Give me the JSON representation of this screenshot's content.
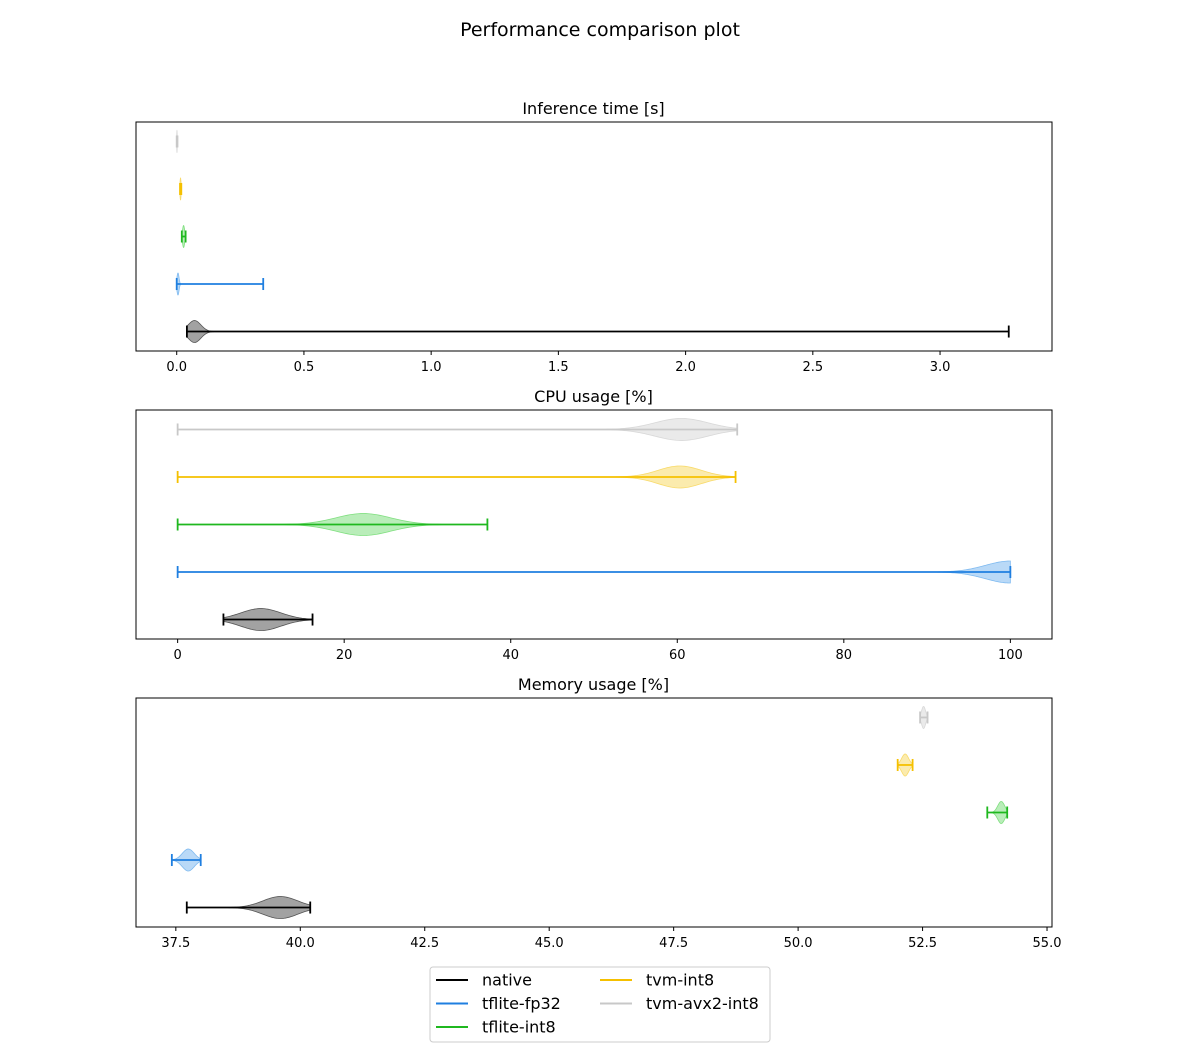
{
  "figure": {
    "title": "Performance comparison plot"
  },
  "chart_data": [
    {
      "type": "violin",
      "orientation": "horizontal",
      "title": "Inference time [s]",
      "xlim": [
        -0.16,
        3.44
      ],
      "xticks": [
        0.0,
        0.5,
        1.0,
        1.5,
        2.0,
        2.5,
        3.0
      ],
      "tick_labels": [
        "0.0",
        "0.5",
        "1.0",
        "1.5",
        "2.0",
        "2.5",
        "3.0"
      ],
      "grid": false,
      "series": [
        {
          "name": "native",
          "min": 0.04,
          "max": 3.27,
          "mode": 0.07,
          "spread": 0.025
        },
        {
          "name": "tflite-fp32",
          "min": 0.0,
          "max": 0.34,
          "mode": 0.005,
          "spread": 0.004
        },
        {
          "name": "tflite-int8",
          "min": 0.02,
          "max": 0.035,
          "mode": 0.027,
          "spread": 0.004
        },
        {
          "name": "tvm-int8",
          "min": 0.013,
          "max": 0.018,
          "mode": 0.015,
          "spread": 0.002
        },
        {
          "name": "tvm-avx2-int8",
          "min": 0.0,
          "max": 0.003,
          "mode": 0.001,
          "spread": 0.001
        }
      ]
    },
    {
      "type": "violin",
      "orientation": "horizontal",
      "title": "CPU usage [%]",
      "xlim": [
        -5,
        105
      ],
      "xticks": [
        0,
        20,
        40,
        60,
        80,
        100
      ],
      "tick_labels": [
        "0",
        "20",
        "40",
        "60",
        "80",
        "100"
      ],
      "grid": false,
      "series": [
        {
          "name": "native",
          "min": 5.5,
          "max": 16.2,
          "mode": 10.0,
          "spread": 2.4
        },
        {
          "name": "tflite-fp32",
          "min": 0.0,
          "max": 100.0,
          "mode": 100.0,
          "spread": 3.0
        },
        {
          "name": "tflite-int8",
          "min": 0.0,
          "max": 37.2,
          "mode": 22.3,
          "spread": 3.3
        },
        {
          "name": "tvm-int8",
          "min": 0.0,
          "max": 67.0,
          "mode": 60.3,
          "spread": 2.6
        },
        {
          "name": "tvm-avx2-int8",
          "min": 0.0,
          "max": 67.2,
          "mode": 60.5,
          "spread": 3.2
        }
      ]
    },
    {
      "type": "violin",
      "orientation": "horizontal",
      "title": "Memory usage [%]",
      "xlim": [
        36.7,
        55.1
      ],
      "xticks": [
        37.5,
        40.0,
        42.5,
        45.0,
        47.5,
        50.0,
        52.5,
        55.0
      ],
      "tick_labels": [
        "37.5",
        "40.0",
        "42.5",
        "45.0",
        "47.5",
        "50.0",
        "52.5",
        "55.0"
      ],
      "grid": false,
      "series": [
        {
          "name": "native",
          "min": 37.72,
          "max": 40.2,
          "mode": 39.6,
          "spread": 0.35
        },
        {
          "name": "tflite-fp32",
          "min": 37.42,
          "max": 38.0,
          "mode": 37.75,
          "spread": 0.12
        },
        {
          "name": "tflite-int8",
          "min": 53.8,
          "max": 54.2,
          "mode": 54.08,
          "spread": 0.07
        },
        {
          "name": "tvm-int8",
          "min": 52.0,
          "max": 52.3,
          "mode": 52.15,
          "spread": 0.07
        },
        {
          "name": "tvm-avx2-int8",
          "min": 52.45,
          "max": 52.6,
          "mode": 52.52,
          "spread": 0.04
        }
      ]
    }
  ],
  "legend": {
    "placement": "bottom-center",
    "columns": 2,
    "entries": [
      {
        "name": "native",
        "color": "#000000",
        "fill": "#555555"
      },
      {
        "name": "tflite-fp32",
        "color": "#1f7fe0",
        "fill": "#7fbaf0"
      },
      {
        "name": "tflite-int8",
        "color": "#1fb81f",
        "fill": "#7fdf7f"
      },
      {
        "name": "tvm-int8",
        "color": "#f5c000",
        "fill": "#f8da6a"
      },
      {
        "name": "tvm-avx2-int8",
        "color": "#c8c8c8",
        "fill": "#d8d8d8"
      }
    ]
  }
}
